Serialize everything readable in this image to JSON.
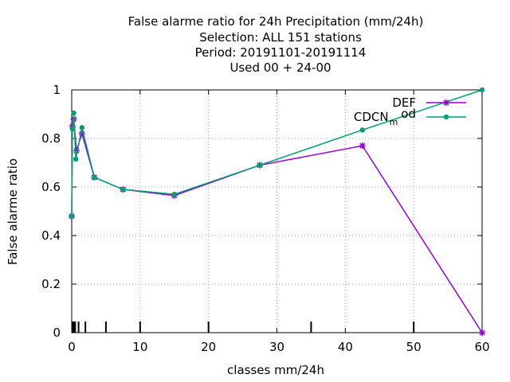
{
  "chart_data": {
    "type": "line",
    "title_lines": [
      "False alarme ratio  for 24h Precipitation (mm/24h)",
      "Selection: ALL    151 stations",
      "Period: 20191101-20191114",
      "Used  00 + 24-00"
    ],
    "xlabel": "classes mm/24h",
    "ylabel": "False alarme ratio",
    "xlim": [
      0,
      60
    ],
    "ylim": [
      0,
      1
    ],
    "x_ticks": [
      0,
      10,
      20,
      30,
      40,
      50,
      60
    ],
    "x_tick_labels": [
      "0",
      "10",
      "20",
      "30",
      "40",
      "50",
      "60"
    ],
    "y_ticks": [
      0,
      0.2,
      0.4,
      0.6,
      0.8,
      1
    ],
    "y_tick_labels": [
      "0",
      "0.2",
      "0.4",
      "0.6",
      "0.8",
      "1"
    ],
    "grid": true,
    "legend_position": "top-right",
    "class_boundaries": [
      0.1,
      0.3,
      0.5,
      1,
      2,
      5,
      10,
      20,
      35,
      50
    ],
    "series": [
      {
        "name": "DEF",
        "color": "#9400d3",
        "marker": "star",
        "points": [
          {
            "x": 0,
            "y": 0.48
          },
          {
            "x": 0.1,
            "y": 0.85
          },
          {
            "x": 0.3,
            "y": 0.88
          },
          {
            "x": 0.7,
            "y": 0.75
          },
          {
            "x": 1.5,
            "y": 0.82
          },
          {
            "x": 3.3,
            "y": 0.64
          },
          {
            "x": 7.5,
            "y": 0.59
          },
          {
            "x": 15,
            "y": 0.565
          },
          {
            "x": 27.5,
            "y": 0.69
          },
          {
            "x": 42.5,
            "y": 0.77
          },
          {
            "x": 60,
            "y": 0
          }
        ]
      },
      {
        "name": "CDCN_m_od",
        "display_name": "CDCN",
        "display_sub": "m",
        "display_tail": "od",
        "color": "#009e73",
        "marker": "filled-circle",
        "points": [
          {
            "x": 0,
            "y": 0.48
          },
          {
            "x": 0.1,
            "y": 0.84
          },
          {
            "x": 0.3,
            "y": 0.905
          },
          {
            "x": 0.6,
            "y": 0.715
          },
          {
            "x": 1.5,
            "y": 0.845
          },
          {
            "x": 3.3,
            "y": 0.64
          },
          {
            "x": 7.5,
            "y": 0.59
          },
          {
            "x": 15,
            "y": 0.57
          },
          {
            "x": 27.5,
            "y": 0.69
          },
          {
            "x": 42.5,
            "y": 0.835
          },
          {
            "x": 60,
            "y": 1.0
          }
        ]
      }
    ]
  }
}
